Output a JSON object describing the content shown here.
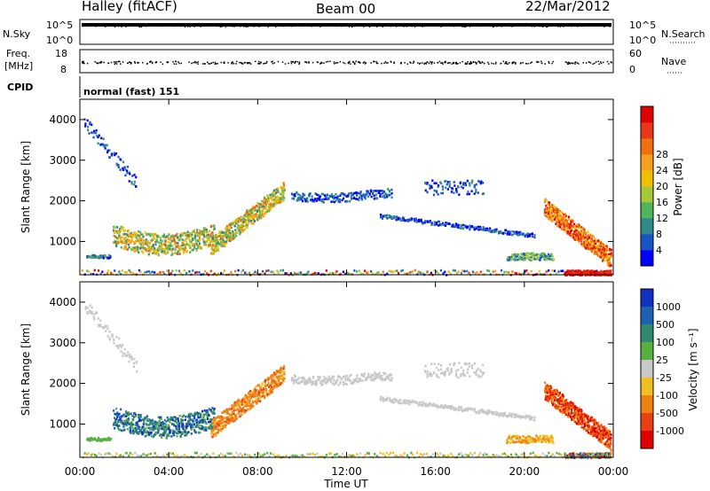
{
  "header": {
    "station": "Halley (fitACF)",
    "beam": "Beam 00",
    "date": "22/Mar/2012"
  },
  "summary_panels": {
    "nsky": {
      "label": "N.Sky",
      "right_label": "N.Search",
      "left_ticks": [
        "10^5",
        "10^0"
      ],
      "right_ticks": [
        "10^5",
        "10^0"
      ]
    },
    "freq": {
      "label_line1": "Freq.",
      "label_line2": "[MHz]",
      "right_label": "Nave",
      "left_ticks": [
        "18",
        "8"
      ],
      "right_ticks": [
        "60",
        "0"
      ]
    },
    "cpid": {
      "label": "CPID",
      "mode": "normal (fast) 151"
    }
  },
  "chart_data": [
    {
      "type": "heatmap",
      "name": "power",
      "ylabel": "Slant Range [km]",
      "ylim": [
        180,
        4500
      ],
      "yticks": [
        "1000",
        "2000",
        "3000",
        "4000"
      ],
      "xlim": [
        "00:00",
        "24:00"
      ],
      "colorbar": {
        "label": "Power [dB]",
        "ticks": [
          "4",
          "8",
          "12",
          "16",
          "20",
          "24",
          "28"
        ],
        "colors": [
          "#0000ff",
          "#1a55c8",
          "#2e8a88",
          "#4fb45c",
          "#a6c93a",
          "#f0c000",
          "#f7a020",
          "#f07010",
          "#e83818",
          "#e00000"
        ]
      }
    },
    {
      "type": "heatmap",
      "name": "velocity",
      "ylabel": "Slant Range [km]",
      "ylim": [
        180,
        4500
      ],
      "yticks": [
        "1000",
        "2000",
        "3000",
        "4000"
      ],
      "xlabel": "Time UT",
      "xticks": [
        "00:00",
        "04:00",
        "08:00",
        "12:00",
        "16:00",
        "20:00",
        "00:00"
      ],
      "colorbar": {
        "label": "Velocity [m s⁻¹]",
        "ticks": [
          "1000",
          "500",
          "100",
          "25",
          "-25",
          "-100",
          "-500",
          "-1000"
        ],
        "colors": [
          "#1030c0",
          "#2060b0",
          "#2f8a70",
          "#58b040",
          "#c8c8c8",
          "#f0c020",
          "#f08010",
          "#e84010",
          "#e00000"
        ]
      }
    }
  ]
}
